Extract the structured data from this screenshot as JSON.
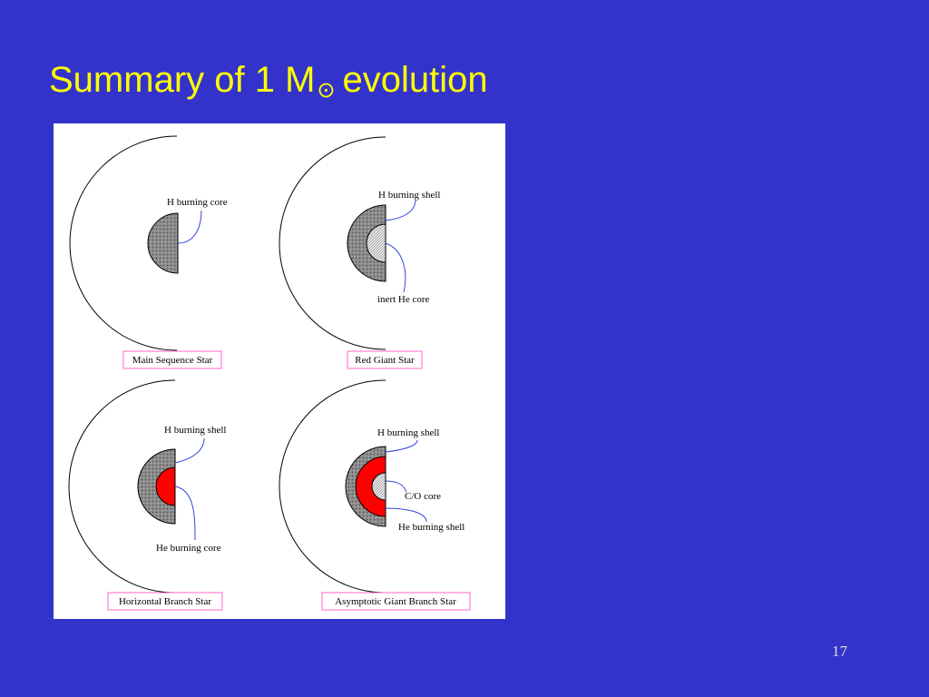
{
  "title": {
    "prefix": "Summary of 1 M",
    "symbol": "⊙",
    "suffix": "evolution"
  },
  "page_number": "17",
  "panels": [
    {
      "caption": "Main Sequence Star",
      "labels": [
        "H burning core"
      ]
    },
    {
      "caption": "Red Giant Star",
      "labels": [
        "H burning shell",
        "inert He core"
      ]
    },
    {
      "caption": "Horizontal Branch Star",
      "labels": [
        "H burning shell",
        "He burning core"
      ]
    },
    {
      "caption": "Asymptotic Giant Branch Star",
      "labels": [
        "H burning shell",
        "C/O core",
        "He burning shell"
      ]
    }
  ]
}
